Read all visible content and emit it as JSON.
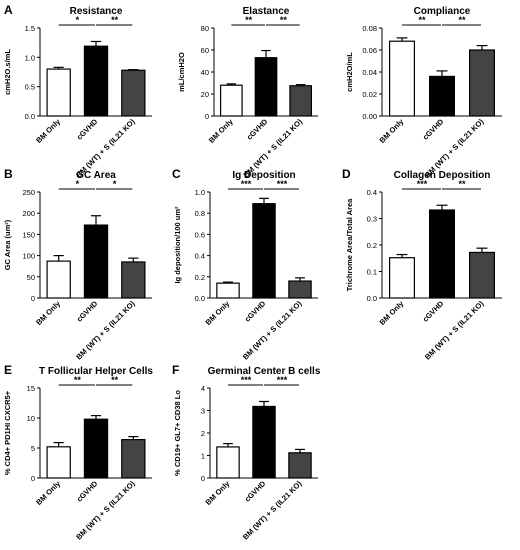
{
  "panels": [
    {
      "letter": "A"
    },
    {
      "letter": "B"
    },
    {
      "letter": "C"
    },
    {
      "letter": "D"
    },
    {
      "letter": "E"
    },
    {
      "letter": "F"
    }
  ],
  "chart_data": [
    {
      "type": "bar",
      "title": "Resistance",
      "ylabel": "cmH2O.s/mL",
      "xlabel": "",
      "categories": [
        "BM Only",
        "cGVHD",
        "BM (WT) + S (IL21 KO)"
      ],
      "values": [
        0.8,
        1.19,
        0.78
      ],
      "errors": [
        0.03,
        0.08,
        0.01
      ],
      "colors": [
        "#ffffff",
        "#000000",
        "#444444"
      ],
      "ylim": [
        0,
        1.5
      ],
      "yticks": [
        "0.0",
        "0.5",
        "1.0",
        "1.5"
      ],
      "significance": [
        {
          "from": 0,
          "to": 1,
          "label": "*"
        },
        {
          "from": 1,
          "to": 2,
          "label": "**"
        }
      ]
    },
    {
      "type": "bar",
      "title": "Elastance",
      "ylabel": "mL/cmH2O",
      "xlabel": "",
      "categories": [
        "BM Only",
        "cGVHD",
        "BM (WT) + S (IL21 KO)"
      ],
      "values": [
        28,
        53,
        27.5
      ],
      "errors": [
        1.2,
        6.5,
        1.0
      ],
      "colors": [
        "#ffffff",
        "#000000",
        "#444444"
      ],
      "ylim": [
        0,
        80
      ],
      "yticks": [
        "0",
        "20",
        "40",
        "60",
        "80"
      ],
      "significance": [
        {
          "from": 0,
          "to": 1,
          "label": "**"
        },
        {
          "from": 1,
          "to": 2,
          "label": "**"
        }
      ]
    },
    {
      "type": "bar",
      "title": "Compliance",
      "ylabel": "cmH2O/mL",
      "xlabel": "",
      "categories": [
        "BM Only",
        "cGVHD",
        "BM (WT) + S (IL21 KO)"
      ],
      "values": [
        0.068,
        0.036,
        0.06
      ],
      "errors": [
        0.003,
        0.005,
        0.004
      ],
      "colors": [
        "#ffffff",
        "#000000",
        "#444444"
      ],
      "ylim": [
        0,
        0.08
      ],
      "yticks": [
        "0.00",
        "0.02",
        "0.04",
        "0.06",
        "0.08"
      ],
      "significance": [
        {
          "from": 0,
          "to": 1,
          "label": "**"
        },
        {
          "from": 1,
          "to": 2,
          "label": "**"
        }
      ]
    },
    {
      "type": "bar",
      "title": "GC Area",
      "ylabel": "GC Area (um²)",
      "xlabel": "",
      "categories": [
        "BM Only",
        "cGVHD",
        "BM (WT) + S (IL21 KO)"
      ],
      "values": [
        87,
        172,
        85
      ],
      "errors": [
        13,
        22,
        9
      ],
      "colors": [
        "#ffffff",
        "#000000",
        "#444444"
      ],
      "ylim": [
        0,
        250
      ],
      "yticks": [
        "0",
        "50",
        "100",
        "150",
        "200",
        "250"
      ],
      "significance": [
        {
          "from": 0,
          "to": 1,
          "label": "*"
        },
        {
          "from": 1,
          "to": 2,
          "label": "*"
        }
      ]
    },
    {
      "type": "bar",
      "title": "Ig Deposition",
      "ylabel": "Ig deposition/100 um²",
      "xlabel": "",
      "categories": [
        "BM Only",
        "cGVHD",
        "BM (WT) + S (IL21 KO)"
      ],
      "values": [
        0.14,
        0.89,
        0.16
      ],
      "errors": [
        0.01,
        0.05,
        0.03
      ],
      "colors": [
        "#ffffff",
        "#000000",
        "#444444"
      ],
      "ylim": [
        0,
        1.0
      ],
      "yticks": [
        "0.0",
        "0.2",
        "0.4",
        "0.6",
        "0.8",
        "1.0"
      ],
      "significance": [
        {
          "from": 0,
          "to": 1,
          "label": "***"
        },
        {
          "from": 1,
          "to": 2,
          "label": "***"
        }
      ]
    },
    {
      "type": "bar",
      "title": "Collagen Deposition",
      "ylabel": "Trichrome Area/Total Area",
      "xlabel": "",
      "categories": [
        "BM Only",
        "cGVHD",
        "BM (WT) + S (IL21 KO)"
      ],
      "values": [
        0.152,
        0.332,
        0.172
      ],
      "errors": [
        0.012,
        0.018,
        0.016
      ],
      "colors": [
        "#ffffff",
        "#000000",
        "#444444"
      ],
      "ylim": [
        0,
        0.4
      ],
      "yticks": [
        "0.0",
        "0.1",
        "0.2",
        "0.3",
        "0.4"
      ],
      "significance": [
        {
          "from": 0,
          "to": 1,
          "label": "***"
        },
        {
          "from": 1,
          "to": 2,
          "label": "**"
        }
      ]
    },
    {
      "type": "bar",
      "title": "T Follicular Helper Cells",
      "ylabel": "% CD4+ PD1HI CXCR5+",
      "xlabel": "",
      "categories": [
        "BM Only",
        "cGVHD",
        "BM (WT) + S (IL21 KO)"
      ],
      "values": [
        5.2,
        9.8,
        6.4
      ],
      "errors": [
        0.7,
        0.6,
        0.5
      ],
      "colors": [
        "#ffffff",
        "#000000",
        "#444444"
      ],
      "ylim": [
        0,
        15
      ],
      "yticks": [
        "0",
        "5",
        "10",
        "15"
      ],
      "significance": [
        {
          "from": 0,
          "to": 1,
          "label": "**"
        },
        {
          "from": 1,
          "to": 2,
          "label": "**"
        }
      ]
    },
    {
      "type": "bar",
      "title": "Germinal Center B cells",
      "ylabel": "% CD19+ GL7+ CD38 Lo",
      "xlabel": "",
      "categories": [
        "BM Only",
        "cGVHD",
        "BM (WT) + S (IL21 KO)"
      ],
      "values": [
        1.38,
        3.18,
        1.12
      ],
      "errors": [
        0.15,
        0.22,
        0.15
      ],
      "colors": [
        "#ffffff",
        "#000000",
        "#444444"
      ],
      "ylim": [
        0,
        4
      ],
      "yticks": [
        "0",
        "1",
        "2",
        "3",
        "4"
      ],
      "significance": [
        {
          "from": 0,
          "to": 1,
          "label": "***"
        },
        {
          "from": 1,
          "to": 2,
          "label": "***"
        }
      ]
    }
  ]
}
